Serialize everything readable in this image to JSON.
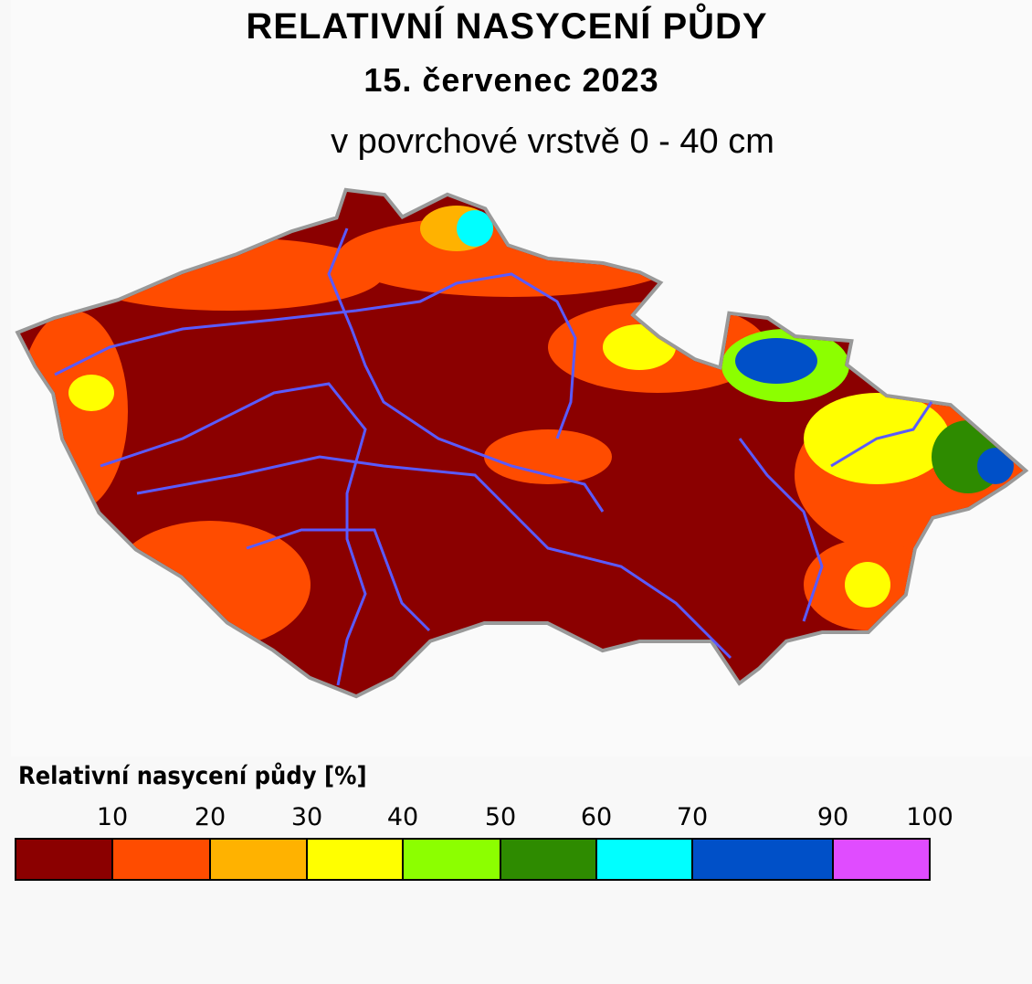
{
  "header": {
    "title": "RELATIVNÍ NASYCENÍ PŮDY",
    "date": "15. červenec 2023",
    "subtitle": "v povrchové vrstvě 0 - 40 cm"
  },
  "legend": {
    "title": "Relativní nasycení půdy [%]",
    "labels": [
      10,
      20,
      30,
      40,
      50,
      60,
      70,
      90,
      100
    ],
    "colors": [
      "#8b0000",
      "#ff4c00",
      "#ffb200",
      "#ffff00",
      "#8cff00",
      "#2e8b00",
      "#00ffff",
      "#0050c8",
      "#e04cff"
    ]
  }
}
